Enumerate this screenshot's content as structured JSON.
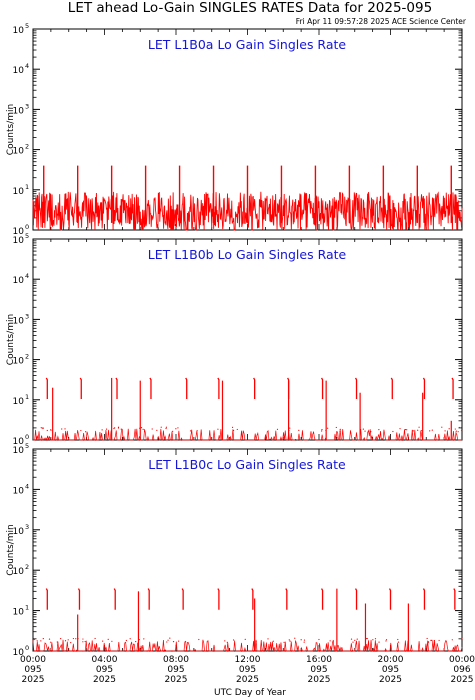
{
  "header": {
    "title": "LET ahead Lo-Gain SINGLES RATES Data for 2025-095",
    "timestamp": "Fri Apr 11 09:57:28 2025 ACE Science Center"
  },
  "colors": {
    "data": "#ff0000",
    "panel_title": "#1515d6",
    "axis": "#000000"
  },
  "chart_data": [
    {
      "type": "line",
      "title": "LET L1B0a Lo Gain Singles Rate",
      "ylabel": "Counts/min",
      "yscale": "log",
      "ylim": [
        1,
        100000
      ],
      "xlim_hours": [
        0,
        24
      ],
      "baseline": [
        1,
        10
      ],
      "spike_value": 40,
      "spike_hours": [
        0.6,
        2.5,
        4.4,
        6.3,
        8.2,
        10.1,
        12.0,
        13.9,
        15.8,
        17.7,
        19.6,
        21.5,
        23.4
      ]
    },
    {
      "type": "line",
      "title": "LET L1B0b Lo Gain Singles Rate",
      "ylabel": "Counts/min",
      "yscale": "log",
      "ylim": [
        1,
        100000
      ],
      "xlim_hours": [
        0,
        24
      ],
      "baseline": [
        1,
        2
      ],
      "burst_value": 35,
      "burst_hours": [
        0.8,
        2.7,
        4.7,
        6.6,
        8.6,
        10.4,
        12.4,
        14.3,
        16.2,
        18.1,
        20.1,
        21.9,
        23.5
      ],
      "tall_spike_hours": [
        1.1,
        4.4,
        6.0,
        10.6,
        14.3,
        16.4,
        18.3,
        21.8,
        23.4
      ],
      "tall_spike_values": [
        20,
        35,
        30,
        30,
        30,
        30,
        15,
        15,
        3
      ]
    },
    {
      "type": "line",
      "title": "LET L1B0c Lo Gain Singles Rate",
      "ylabel": "Counts/min",
      "yscale": "log",
      "ylim": [
        1,
        100000
      ],
      "xlim_hours": [
        0,
        24
      ],
      "baseline": [
        1,
        2
      ],
      "burst_value": 35,
      "burst_hours": [
        0.8,
        2.6,
        4.6,
        6.5,
        8.4,
        10.4,
        12.3,
        14.2,
        16.2,
        18.1,
        20.0,
        21.9,
        23.6
      ],
      "tall_spike_hours": [
        2.5,
        5.9,
        12.4,
        17.0,
        18.6,
        21.0
      ],
      "tall_spike_values": [
        8,
        30,
        20,
        35,
        15,
        15
      ]
    }
  ],
  "yticks": {
    "base": "10",
    "exponents": [
      "0",
      "1",
      "2",
      "3",
      "4",
      "5"
    ],
    "values": [
      1,
      10,
      100,
      1000,
      10000,
      100000
    ]
  },
  "xaxis": {
    "label": "UTC Day of Year",
    "ticks": [
      {
        "hour": 0,
        "time": "00:00",
        "doy": "095",
        "year": "2025"
      },
      {
        "hour": 4,
        "time": "04:00",
        "doy": "095",
        "year": "2025"
      },
      {
        "hour": 8,
        "time": "08:00",
        "doy": "095",
        "year": "2025"
      },
      {
        "hour": 12,
        "time": "12:00",
        "doy": "095",
        "year": "2025"
      },
      {
        "hour": 16,
        "time": "16:00",
        "doy": "095",
        "year": "2025"
      },
      {
        "hour": 20,
        "time": "20:00",
        "doy": "095",
        "year": "2025"
      },
      {
        "hour": 24,
        "time": "00:00",
        "doy": "096",
        "year": "2025"
      }
    ]
  }
}
